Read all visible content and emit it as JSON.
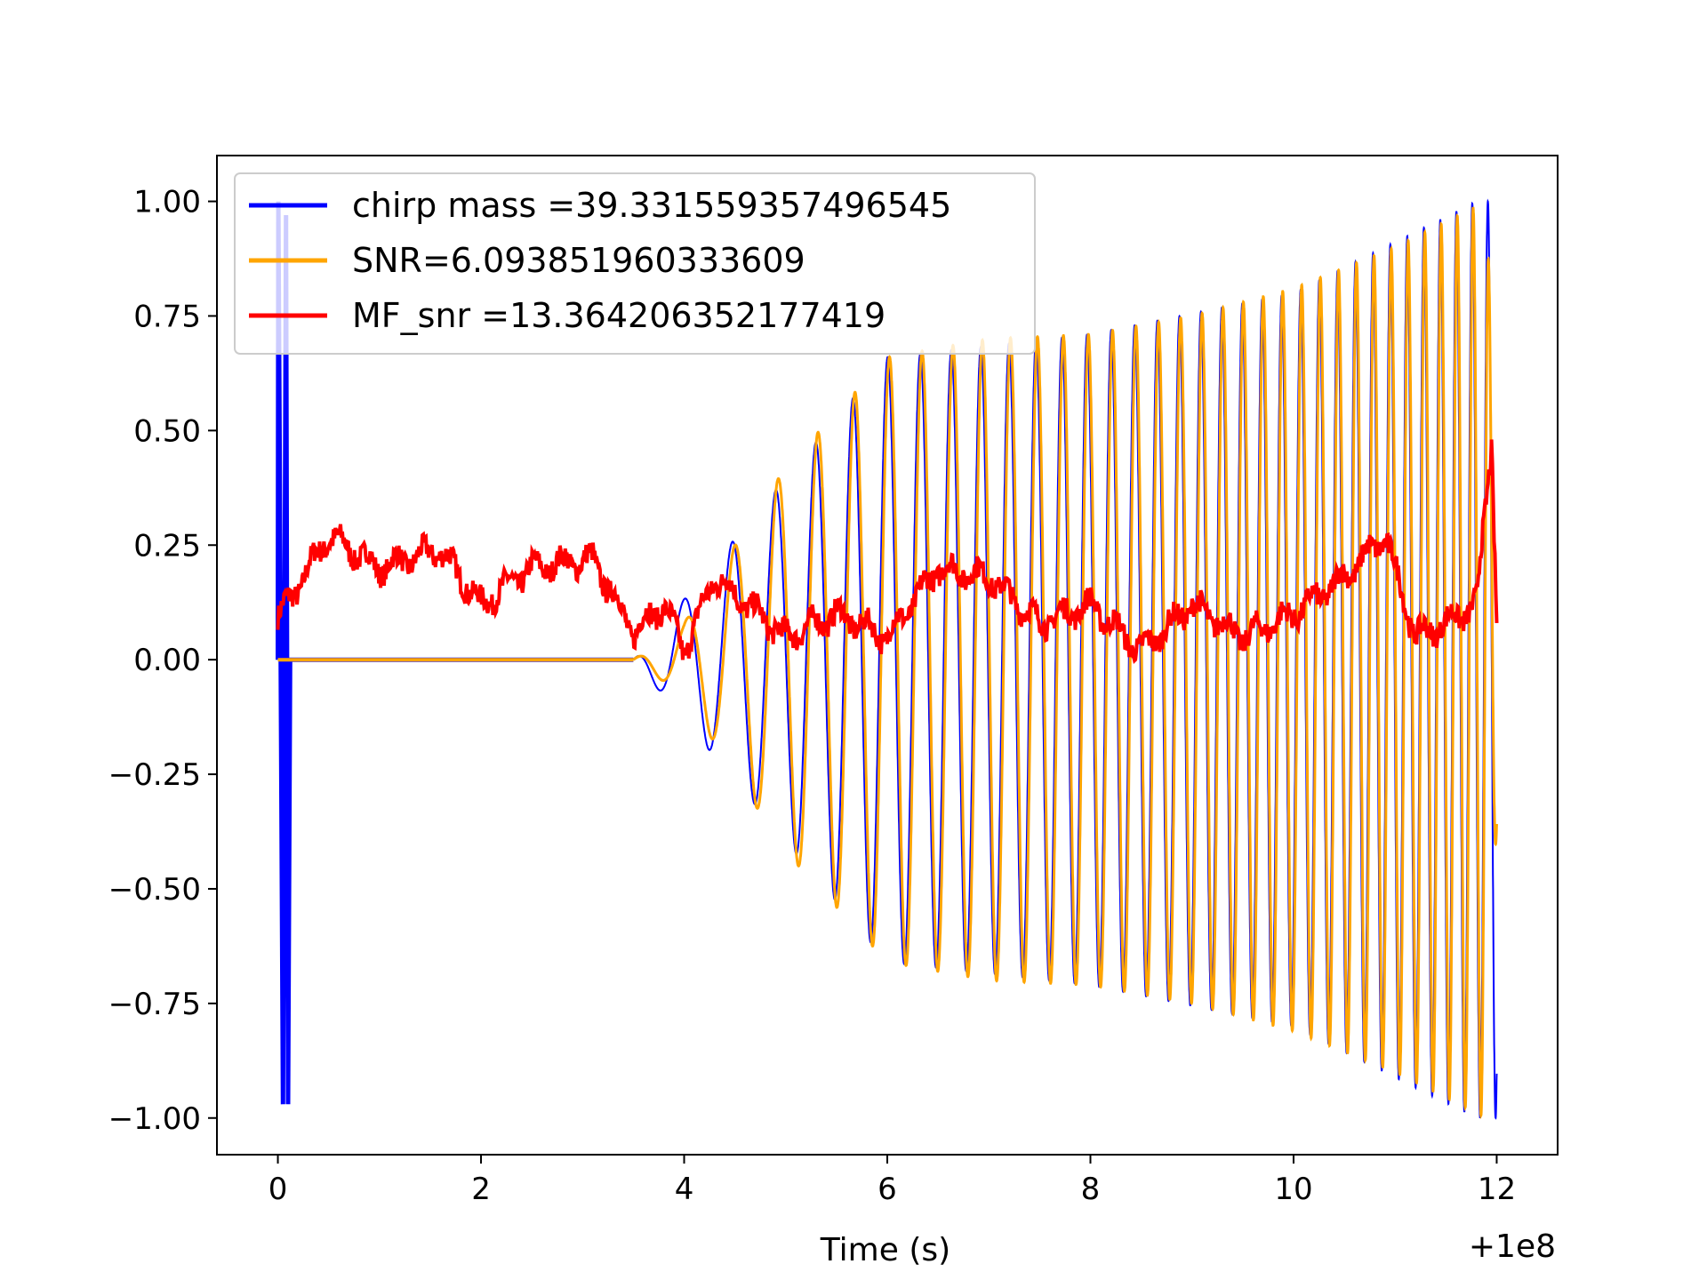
{
  "chart_data": {
    "type": "line",
    "title": "",
    "xlabel": "Time (s)",
    "ylabel": "",
    "x_offset_label": "+1e8",
    "xlim": [
      -0.6,
      12.6
    ],
    "ylim": [
      -1.08,
      1.1
    ],
    "xticks": [
      0,
      2,
      4,
      6,
      8,
      10,
      12
    ],
    "yticks": [
      1.0,
      0.75,
      0.5,
      0.25,
      0.0,
      -0.25,
      -0.5,
      -0.75,
      -1.0
    ],
    "xtick_labels": [
      "0",
      "2",
      "4",
      "6",
      "8",
      "10",
      "12"
    ],
    "ytick_labels": [
      "1.00",
      "0.75",
      "0.50",
      "0.25",
      "0.00",
      "−0.25",
      "−0.50",
      "−0.75",
      "−1.00"
    ],
    "grid": false,
    "legend_position": "upper-left",
    "series": [
      {
        "name": "chirp mass =39.331559357496545",
        "color": "#0000ff",
        "description_points": {
          "x": [
            0.0,
            0.02,
            0.05,
            0.08,
            0.1,
            0.12,
            3.5,
            6.0,
            8.0,
            10.0,
            11.8,
            12.0
          ],
          "envelope": [
            1.0,
            0.97,
            0.97,
            0.97,
            0.97,
            0.0,
            0.0,
            0.66,
            0.71,
            0.8,
            1.0,
            1.0
          ]
        }
      },
      {
        "name": "SNR=6.093851960333609",
        "color": "#ffa500",
        "description_points": {
          "x": [
            0.0,
            3.5,
            4.0,
            5.0,
            6.0,
            7.0,
            8.0,
            9.0,
            10.0,
            11.0,
            11.9,
            12.0
          ],
          "envelope": [
            0.0,
            0.0,
            0.08,
            0.42,
            0.66,
            0.7,
            0.71,
            0.75,
            0.81,
            0.9,
            1.0,
            0.36
          ]
        }
      },
      {
        "name": "MF_snr =13.364206352177419",
        "color": "#ff0000",
        "description_points": {
          "x": [
            0.0,
            0.5,
            1.0,
            1.6,
            2.0,
            2.5,
            3.1,
            3.5,
            3.8,
            4.0,
            4.3,
            5.0,
            5.5,
            6.0,
            6.5,
            7.0,
            7.5,
            8.0,
            8.5,
            9.0,
            9.5,
            10.0,
            10.5,
            10.9,
            11.2,
            11.5,
            11.8,
            11.95,
            12.0
          ],
          "y": [
            0.09,
            0.27,
            0.2,
            0.24,
            0.12,
            0.2,
            0.22,
            0.06,
            0.12,
            0.02,
            0.18,
            0.05,
            0.1,
            0.05,
            0.2,
            0.18,
            0.08,
            0.12,
            0.02,
            0.12,
            0.05,
            0.1,
            0.18,
            0.27,
            0.05,
            0.08,
            0.12,
            0.48,
            0.09
          ]
        }
      }
    ]
  }
}
